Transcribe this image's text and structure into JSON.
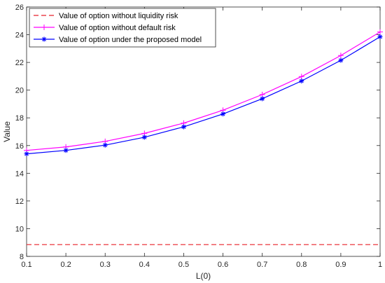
{
  "chart_data": {
    "type": "line",
    "title": "",
    "xlabel": "L(0)",
    "ylabel": "Value",
    "xlim": [
      0.1,
      1
    ],
    "ylim": [
      8,
      26
    ],
    "xticks": [
      0.1,
      0.2,
      0.3,
      0.4,
      0.5,
      0.6,
      0.7,
      0.8,
      0.9,
      1
    ],
    "xtick_labels": [
      "0.1",
      "0.2",
      "0.3",
      "0.4",
      "0.5",
      "0.6",
      "0.7",
      "0.8",
      "0.9",
      "1"
    ],
    "yticks": [
      8,
      10,
      12,
      14,
      16,
      18,
      20,
      22,
      24,
      26
    ],
    "ytick_labels": [
      "8",
      "10",
      "12",
      "14",
      "16",
      "18",
      "20",
      "22",
      "24",
      "26"
    ],
    "grid": false,
    "legend_position": "top-left",
    "x": [
      0.1,
      0.2,
      0.3,
      0.4,
      0.5,
      0.6,
      0.7,
      0.8,
      0.9,
      1
    ],
    "series": [
      {
        "name": "Value of option without liquidity risk",
        "color": "#e8202a",
        "style": "dashed",
        "marker": "none",
        "values": [
          8.85,
          8.85,
          8.85,
          8.85,
          8.85,
          8.85,
          8.85,
          8.85,
          8.85,
          8.85
        ]
      },
      {
        "name": "Value of option without default risk",
        "color": "#ff00ff",
        "style": "solid",
        "marker": "plus",
        "values": [
          15.65,
          15.9,
          16.3,
          16.88,
          17.62,
          18.55,
          19.68,
          20.98,
          22.5,
          24.2
        ]
      },
      {
        "name": "Value of option under the proposed model",
        "color": "#0000ff",
        "style": "solid",
        "marker": "asterisk",
        "values": [
          15.4,
          15.65,
          16.03,
          16.6,
          17.35,
          18.28,
          19.38,
          20.66,
          22.15,
          23.85
        ]
      }
    ]
  }
}
